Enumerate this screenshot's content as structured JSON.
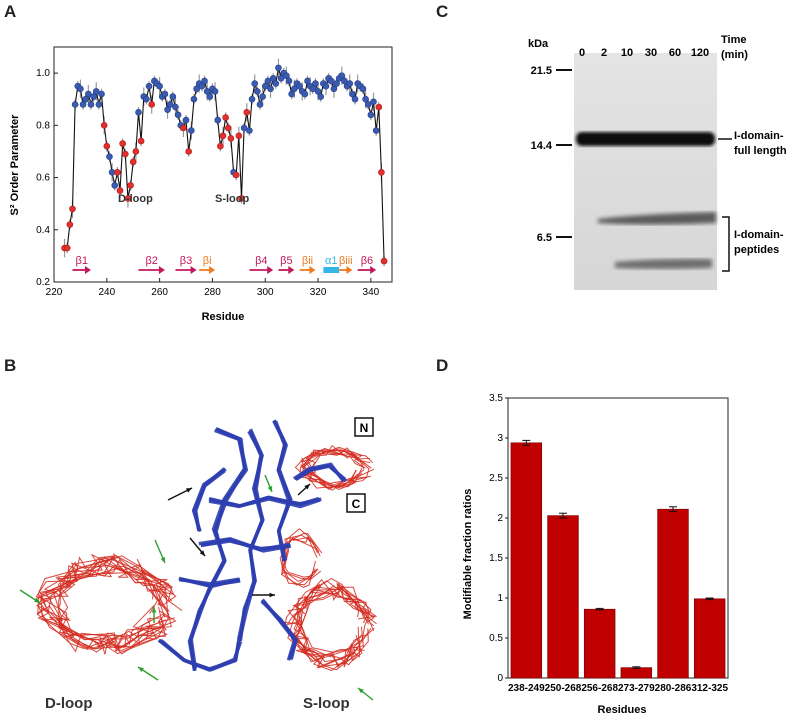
{
  "panels": {
    "a": "A",
    "b": "B",
    "c": "C",
    "d": "D"
  },
  "panel_a": {
    "loop_labels": {
      "d_loop": "D-loop",
      "s_loop": "S-loop"
    },
    "strands": [
      {
        "label": "β1",
        "start": 227,
        "end": 234,
        "color": "#c2185b"
      },
      {
        "label": "β2",
        "start": 252,
        "end": 262,
        "color": "#c2185b"
      },
      {
        "label": "β3",
        "start": 266,
        "end": 274,
        "color": "#c2185b"
      },
      {
        "label": "βi",
        "start": 275,
        "end": 281,
        "color": "#f07a1e"
      },
      {
        "label": "β4",
        "start": 294,
        "end": 303,
        "color": "#c2185b"
      },
      {
        "label": "β5",
        "start": 305,
        "end": 311,
        "color": "#c2185b"
      },
      {
        "label": "βii",
        "start": 313,
        "end": 319,
        "color": "#f07a1e"
      },
      {
        "label": "α1",
        "start": 322,
        "end": 328,
        "color": "#35b6e6"
      },
      {
        "label": "βiii",
        "start": 328,
        "end": 333,
        "color": "#f07a1e"
      },
      {
        "label": "β6",
        "start": 335,
        "end": 342,
        "color": "#c2185b"
      }
    ]
  },
  "panel_b": {
    "loop_labels": {
      "d_loop": "D-loop",
      "s_loop": "S-loop"
    },
    "terminal_labels": {
      "n": "N",
      "c": "C"
    }
  },
  "panel_c": {
    "kda_label": "kDa",
    "time_label_1": "Time",
    "time_label_2": "(min)",
    "time_points": [
      "0",
      "2",
      "10",
      "30",
      "60",
      "120"
    ],
    "markers": [
      "21.5",
      "14.4",
      "6.5"
    ],
    "band_labels": {
      "full_1": "I-domain-",
      "full_2": "full length",
      "pep_1": "I-domain-",
      "pep_2": "peptides"
    }
  },
  "chart_data": [
    {
      "type": "scatter",
      "title": "",
      "xlabel": "Residue",
      "ylabel": "S² Order Parameter",
      "xlim": [
        220,
        348
      ],
      "ylim": [
        0.2,
        1.1
      ],
      "xticks": [
        220,
        240,
        260,
        280,
        300,
        320,
        340
      ],
      "yticks": [
        0.2,
        0.4,
        0.6,
        0.8,
        1.0
      ],
      "x": [
        224,
        225,
        226,
        227,
        228,
        229,
        230,
        231,
        232,
        233,
        234,
        235,
        236,
        237,
        238,
        239,
        240,
        241,
        242,
        243,
        244,
        245,
        246,
        247,
        248,
        249,
        250,
        251,
        252,
        253,
        254,
        255,
        256,
        257,
        258,
        259,
        260,
        261,
        262,
        263,
        264,
        265,
        266,
        267,
        268,
        269,
        270,
        271,
        272,
        273,
        274,
        275,
        276,
        277,
        278,
        279,
        280,
        281,
        282,
        283,
        284,
        285,
        286,
        287,
        288,
        289,
        290,
        291,
        292,
        293,
        294,
        295,
        296,
        297,
        298,
        299,
        300,
        301,
        302,
        303,
        304,
        305,
        306,
        307,
        308,
        309,
        310,
        311,
        312,
        313,
        314,
        315,
        316,
        317,
        318,
        319,
        320,
        321,
        322,
        323,
        324,
        325,
        326,
        327,
        328,
        329,
        330,
        331,
        332,
        333,
        334,
        335,
        336,
        337,
        338,
        339,
        340,
        341,
        342,
        343,
        344,
        345
      ],
      "y": [
        0.33,
        0.33,
        0.42,
        0.48,
        0.88,
        0.95,
        0.94,
        0.88,
        0.9,
        0.92,
        0.88,
        0.91,
        0.93,
        0.88,
        0.92,
        0.8,
        0.72,
        0.68,
        0.62,
        0.57,
        0.62,
        0.55,
        0.73,
        0.69,
        0.52,
        0.57,
        0.66,
        0.7,
        0.85,
        0.74,
        0.91,
        0.9,
        0.95,
        0.88,
        0.97,
        0.96,
        0.95,
        0.91,
        0.92,
        0.86,
        0.88,
        0.91,
        0.87,
        0.84,
        0.8,
        0.79,
        0.82,
        0.7,
        0.78,
        0.9,
        0.94,
        0.96,
        0.95,
        0.97,
        0.93,
        0.91,
        0.94,
        0.93,
        0.82,
        0.72,
        0.76,
        0.83,
        0.79,
        0.75,
        0.62,
        0.61,
        0.76,
        0.52,
        0.79,
        0.85,
        0.78,
        0.9,
        0.96,
        0.93,
        0.88,
        0.91,
        0.95,
        0.97,
        0.94,
        0.98,
        0.96,
        1.02,
        0.98,
        1.0,
        0.99,
        0.97,
        0.92,
        0.94,
        0.96,
        0.95,
        0.93,
        0.92,
        0.97,
        0.95,
        0.94,
        0.96,
        0.93,
        0.91,
        0.96,
        0.95,
        0.98,
        0.97,
        0.94,
        0.96,
        0.98,
        0.99,
        0.97,
        0.95,
        0.96,
        0.92,
        0.9,
        0.96,
        0.95,
        0.94,
        0.9,
        0.88,
        0.84,
        0.89,
        0.78,
        0.87,
        0.62,
        0.28
      ],
      "red_points": [
        224,
        225,
        226,
        227,
        239,
        240,
        244,
        245,
        246,
        247,
        248,
        249,
        250,
        251,
        253,
        257,
        269,
        271,
        283,
        284,
        285,
        286,
        287,
        289,
        290,
        291,
        293,
        343,
        344,
        345
      ]
    },
    {
      "type": "bar",
      "title": "",
      "xlabel": "Residues",
      "ylabel": "Modifiable fraction ratios",
      "categories": [
        "238-249",
        "250-268",
        "256-268",
        "273-279",
        "280-286",
        "312-325"
      ],
      "values": [
        2.94,
        2.03,
        0.86,
        0.13,
        2.11,
        0.99
      ],
      "errors": [
        0.03,
        0.03,
        0.01,
        0.01,
        0.03,
        0.01
      ],
      "ylim": [
        0,
        3.5
      ],
      "yticks": [
        0,
        0.5,
        1,
        1.5,
        2,
        2.5,
        3,
        3.5
      ],
      "bar_color": "#c00000"
    }
  ]
}
